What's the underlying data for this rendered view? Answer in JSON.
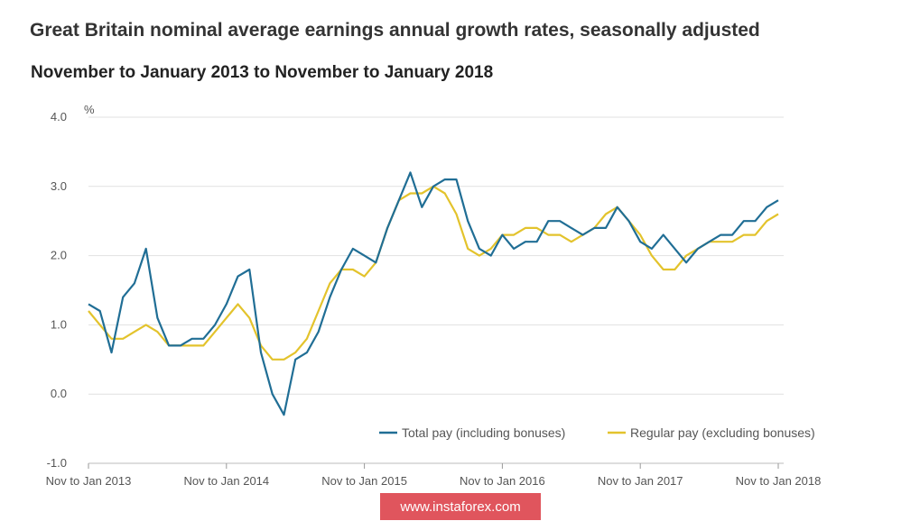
{
  "title": "Great Britain nominal average earnings annual growth rates, seasonally adjusted",
  "watermark": "www.instaforex.com",
  "chart_data": {
    "type": "line",
    "title": "November to January 2013 to November to January 2018",
    "xlabel": "",
    "ylabel": "%",
    "ylim": [
      -1.0,
      4.0
    ],
    "yticks": [
      -1.0,
      0.0,
      1.0,
      2.0,
      3.0,
      4.0
    ],
    "ytick_labels": [
      "-1.0",
      "0.0",
      "1.0",
      "2.0",
      "3.0",
      "4.0"
    ],
    "xtick_labels": [
      "Nov to Jan 2013",
      "Nov to Jan 2014",
      "Nov to Jan 2015",
      "Nov to Jan 2016",
      "Nov to Jan 2017",
      "Nov to Jan 2018"
    ],
    "xtick_index": [
      0,
      12,
      24,
      36,
      48,
      60
    ],
    "grid": true,
    "legend_position": "bottom-right",
    "series": [
      {
        "name": "Total pay (including bonuses)",
        "color": "#206e95",
        "values": [
          1.3,
          1.2,
          0.6,
          1.4,
          1.6,
          2.1,
          1.1,
          0.7,
          0.7,
          0.8,
          0.8,
          1.0,
          1.3,
          1.7,
          1.8,
          0.6,
          0.0,
          -0.3,
          0.5,
          0.6,
          0.9,
          1.4,
          1.8,
          2.1,
          2.0,
          1.9,
          2.4,
          2.8,
          3.2,
          2.7,
          3.0,
          3.1,
          3.1,
          2.5,
          2.1,
          2.0,
          2.3,
          2.1,
          2.2,
          2.2,
          2.5,
          2.5,
          2.4,
          2.3,
          2.4,
          2.4,
          2.7,
          2.5,
          2.2,
          2.1,
          2.3,
          2.1,
          1.9,
          2.1,
          2.2,
          2.3,
          2.3,
          2.5,
          2.5,
          2.7,
          2.8
        ]
      },
      {
        "name": "Regular pay (excluding bonuses)",
        "color": "#e3c32c",
        "values": [
          1.2,
          1.0,
          0.8,
          0.8,
          0.9,
          1.0,
          0.9,
          0.7,
          0.7,
          0.7,
          0.7,
          0.9,
          1.1,
          1.3,
          1.1,
          0.7,
          0.5,
          0.5,
          0.6,
          0.8,
          1.2,
          1.6,
          1.8,
          1.8,
          1.7,
          1.9,
          2.4,
          2.8,
          2.9,
          2.9,
          3.0,
          2.9,
          2.6,
          2.1,
          2.0,
          2.1,
          2.3,
          2.3,
          2.4,
          2.4,
          2.3,
          2.3,
          2.2,
          2.3,
          2.4,
          2.6,
          2.7,
          2.5,
          2.3,
          2.0,
          1.8,
          1.8,
          2.0,
          2.1,
          2.2,
          2.2,
          2.2,
          2.3,
          2.3,
          2.5,
          2.6
        ]
      }
    ]
  }
}
